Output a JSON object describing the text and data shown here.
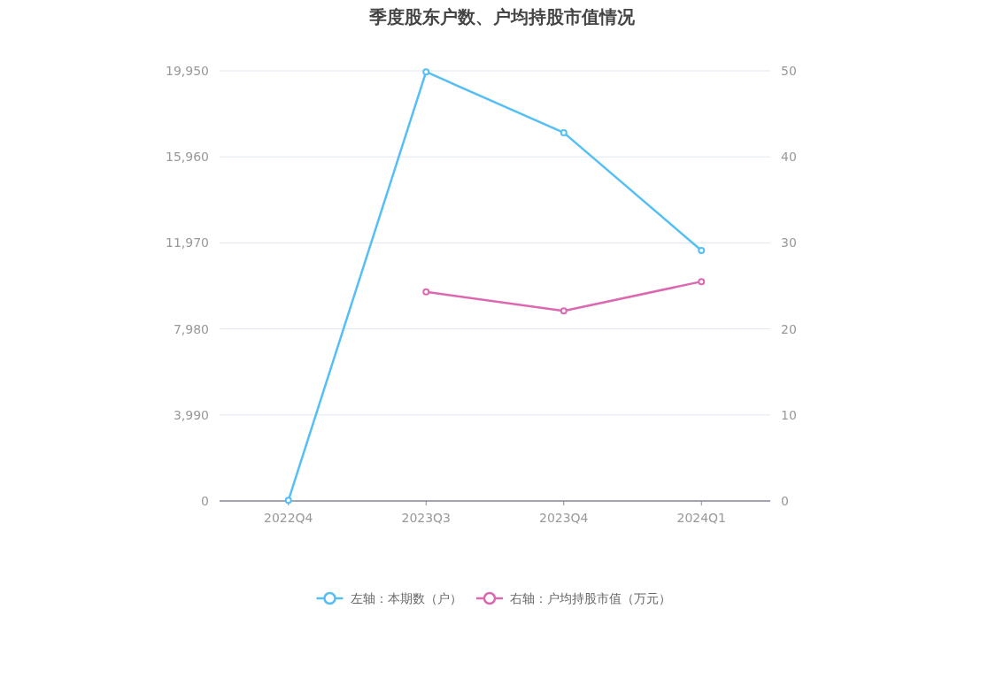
{
  "chart_data": {
    "type": "line",
    "title": "季度股东户数、户均持股市值情况",
    "categories": [
      "2022Q4",
      "2023Q3",
      "2023Q4",
      "2024Q1"
    ],
    "series": [
      {
        "name": "左轴：本期数（户）",
        "color": "#55bff5",
        "values": [
          30,
          19900,
          17080,
          11620
        ]
      },
      {
        "name": "右轴：户均持股市值（万元）",
        "color": "#dc69b0",
        "axis": "y2",
        "values": [
          null,
          24.3,
          22.1,
          25.5
        ]
      }
    ],
    "ylim": [
      0,
      19950
    ],
    "yticks": [
      0,
      {
        "value": 3990,
        "label": "3,990"
      },
      {
        "value": 7980,
        "label": "7,980"
      },
      {
        "value": 11970,
        "label": "11,970"
      },
      {
        "value": 15960,
        "label": "15,960"
      },
      {
        "value": 19950,
        "label": "19,950"
      }
    ],
    "y2lim": [
      0,
      50
    ],
    "y2ticks": [
      0,
      10,
      20,
      30,
      40,
      50
    ],
    "grid": "y",
    "legend": "bottom",
    "marker": "circle",
    "line_style": "solid"
  }
}
